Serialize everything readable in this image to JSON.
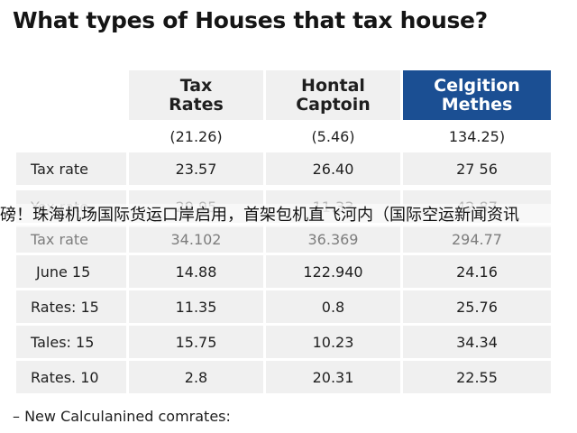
{
  "title": "What types of Houses that tax house?",
  "table": {
    "headers": [
      "",
      "Tax Rates",
      "Hontal Captoin",
      "Celgition Methes"
    ],
    "header_lines": [
      [],
      [
        "Tax",
        "Rates"
      ],
      [
        "Hontal",
        "Captoin"
      ],
      [
        "Celgition",
        "Methes"
      ]
    ],
    "subheader": [
      "",
      "(21.26)",
      "(5.46)",
      "134.25)"
    ],
    "rows": [
      [
        "Tax rate",
        "23.57",
        "26.40",
        "27 56"
      ],
      [
        "Yex rate",
        "29.95",
        "11.33",
        "42.87"
      ],
      [
        "Tax rate",
        "34.102",
        "36.369",
        "294.77"
      ],
      [
        "June 15",
        "14.88",
        "122.940",
        "24.16"
      ],
      [
        "Rates: 15",
        "11.35",
        "0.8",
        "25.76"
      ],
      [
        "Tales: 15",
        "15.75",
        "10.23",
        "34.34"
      ],
      [
        "Rates. 10",
        "2.8",
        "20.31",
        "22.55"
      ]
    ],
    "accent_color": "#1b4f93"
  },
  "overlay_text": "磅！珠海机场国际货运口岸启用，首架包机直飞河内（国际空运新闻资讯",
  "footnote": "– New Calculanined comrates:"
}
